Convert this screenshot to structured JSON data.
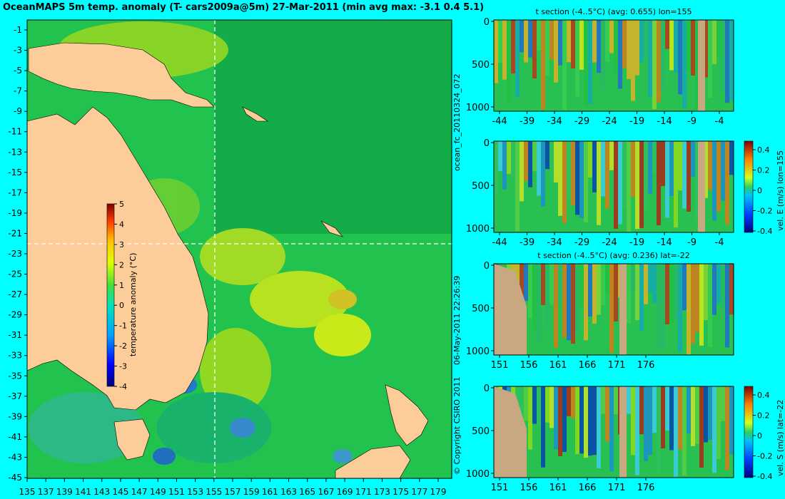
{
  "map": {
    "title": "OceanMAPS 5m temp. anomaly (T- cars2009a@5m) 27-Mar-2011 (min avg max: -3.1 0.4 5.1)",
    "lat_ticks": [
      "-1",
      "-3",
      "-5",
      "-7",
      "-9",
      "-11",
      "-13",
      "-15",
      "-17",
      "-19",
      "-21",
      "-23",
      "-25",
      "-27",
      "-29",
      "-31",
      "-33",
      "-35",
      "-37",
      "-39",
      "-41",
      "-43",
      "-45"
    ],
    "lon_ticks": [
      "135",
      "137",
      "139",
      "141",
      "143",
      "145",
      "147",
      "149",
      "151",
      "153",
      "155",
      "157",
      "159",
      "161",
      "163",
      "165",
      "167",
      "169",
      "171",
      "173",
      "175",
      "177",
      "179"
    ],
    "section_lon": 155,
    "section_lat": -22,
    "colorbar": {
      "label": "temperature anomaly (°C)",
      "ticks": [
        "5",
        "4",
        "3",
        "2",
        "1",
        "0",
        "-1",
        "-2",
        "-3",
        "-4"
      ]
    },
    "colors": {
      "land": "#fccc99",
      "background": "#00ffff",
      "ocean": "#20c050",
      "section_line": "#ffffff"
    }
  },
  "side_text": {
    "run_id": "ocean_fc_20110324_072",
    "timestamp": "06-May-2011 22:26:39",
    "copyright": "© Copyright CSIRO 2011"
  },
  "panels": [
    {
      "title": "t section (-4..5°C) (avg: 0.655) lon=155",
      "y_ticks": [
        "0",
        "500",
        "1000"
      ],
      "x_ticks": [
        "-44",
        "-39",
        "-34",
        "-29",
        "-24",
        "-19",
        "-14",
        "-9",
        "-4"
      ],
      "cbar": false
    },
    {
      "title": "",
      "y_ticks": [
        "0",
        "500",
        "1000"
      ],
      "x_ticks": [
        "-44",
        "-39",
        "-34",
        "-29",
        "-24",
        "-19",
        "-14",
        "-9",
        "-4"
      ],
      "cbar": true,
      "cbar_label": "vel. E (m/s) lon=155",
      "cbar_ticks": [
        "0.4",
        "0.2",
        "0",
        "-0.2",
        "-0.4"
      ]
    },
    {
      "title": "t section (-4..5°C) (avg: 0.236) lat=-22",
      "y_ticks": [
        "0",
        "500",
        "1000"
      ],
      "x_ticks": [
        "151",
        "156",
        "161",
        "166",
        "171",
        "176"
      ],
      "cbar": false
    },
    {
      "title": "",
      "y_ticks": [
        "0",
        "500",
        "1000"
      ],
      "x_ticks": [
        "151",
        "156",
        "161",
        "166",
        "171",
        "176"
      ],
      "cbar": true,
      "cbar_label": "vel. S (m/s) lat=-22",
      "cbar_ticks": [
        "0.4",
        "0.2",
        "0",
        "-0.2",
        "-0.4"
      ]
    }
  ],
  "chart_data": [
    {
      "type": "heatmap",
      "title": "OceanMAPS 5m temp. anomaly (T- cars2009a@5m) 27-Mar-2011 (min avg max: -3.1 0.4 5.1)",
      "x": [
        135,
        137,
        139,
        141,
        143,
        145,
        147,
        149,
        151,
        153,
        155,
        157,
        159,
        161,
        163,
        165,
        167,
        169,
        171,
        173,
        175,
        177,
        179
      ],
      "y": [
        -1,
        -3,
        -5,
        -7,
        -9,
        -11,
        -13,
        -15,
        -17,
        -19,
        -21,
        -23,
        -25,
        -27,
        -29,
        -31,
        -33,
        -35,
        -37,
        -39,
        -41,
        -43,
        -45
      ],
      "value_range": [
        -4,
        5
      ],
      "value_label": "temperature anomaly (°C)",
      "summary": {
        "min": -3.1,
        "avg": 0.4,
        "max": 5.1
      }
    },
    {
      "type": "heatmap",
      "title": "t section (-4..5°C) (avg: 0.655) lon=155",
      "x": [
        -44,
        -39,
        -34,
        -29,
        -24,
        -19,
        -14,
        -9,
        -4
      ],
      "y": [
        0,
        500,
        1000
      ],
      "value_range": [
        -4,
        5
      ],
      "avg": 0.655
    },
    {
      "type": "heatmap",
      "x": [
        -44,
        -39,
        -34,
        -29,
        -24,
        -19,
        -14,
        -9,
        -4
      ],
      "y": [
        0,
        500,
        1000
      ],
      "value_range": [
        -0.4,
        0.4
      ],
      "value_label": "vel. E (m/s) lon=155"
    },
    {
      "type": "heatmap",
      "title": "t section (-4..5°C) (avg: 0.236) lat=-22",
      "x": [
        151,
        156,
        161,
        166,
        171,
        176
      ],
      "y": [
        0,
        500,
        1000
      ],
      "value_range": [
        -4,
        5
      ],
      "avg": 0.236
    },
    {
      "type": "heatmap",
      "x": [
        151,
        156,
        161,
        166,
        171,
        176
      ],
      "y": [
        0,
        500,
        1000
      ],
      "value_range": [
        -0.4,
        0.4
      ],
      "value_label": "vel. S (m/s) lat=-22"
    }
  ]
}
